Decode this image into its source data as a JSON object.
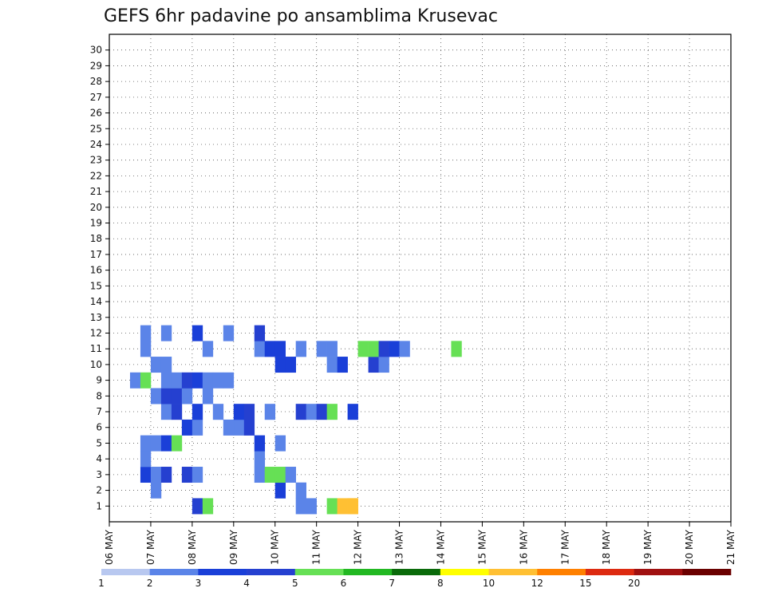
{
  "chart_data": {
    "type": "heatmap",
    "title": "GEFS 6hr padavine po ansamblima Krusevac",
    "y_members": [
      1,
      2,
      3,
      4,
      5,
      6,
      7,
      8,
      9,
      10,
      11,
      12,
      13,
      14,
      15,
      16,
      17,
      18,
      19,
      20,
      21,
      22,
      23,
      24,
      25,
      26,
      27,
      28,
      29,
      30
    ],
    "x_ticks": [
      "06 MAY",
      "07 MAY",
      "08 MAY",
      "09 MAY",
      "10 MAY",
      "11 MAY",
      "12 MAY",
      "13 MAY",
      "14 MAY",
      "15 MAY",
      "16 MAY",
      "17 MAY",
      "18 MAY",
      "19 MAY",
      "20 MAY",
      "21 MAY"
    ],
    "x_unit": "6h steps",
    "x_range": [
      0,
      60
    ],
    "grid": true,
    "colorbar": {
      "labels": [
        "1",
        "2",
        "3",
        "4",
        "5",
        "6",
        "7",
        "8",
        "10",
        "12",
        "15",
        "20"
      ],
      "colors": [
        "#b8c8f0",
        "#5b84e8",
        "#1a3fd8",
        "#2540d0",
        "#66e055",
        "#22b822",
        "#0a6a0a",
        "#ffff00",
        "#ffc033",
        "#ff8000",
        "#dd2a10",
        "#a01010",
        "#6a0000"
      ]
    },
    "levels": [
      1,
      2,
      3,
      4,
      5,
      6,
      7,
      8,
      10,
      12,
      15,
      20
    ],
    "cells": [
      [
        8,
        1,
        3
      ],
      [
        9,
        1,
        4
      ],
      [
        18,
        1,
        1
      ],
      [
        19,
        1,
        1
      ],
      [
        21,
        1,
        4
      ],
      [
        22,
        1,
        8
      ],
      [
        23,
        1,
        8
      ],
      [
        4,
        2,
        1
      ],
      [
        23,
        1,
        8
      ],
      [
        18,
        2,
        1
      ],
      [
        16,
        2,
        2
      ],
      [
        3,
        3,
        2
      ],
      [
        4,
        3,
        1
      ],
      [
        5,
        3,
        3
      ],
      [
        7,
        3,
        3
      ],
      [
        8,
        3,
        1
      ],
      [
        14,
        3,
        1
      ],
      [
        15,
        3,
        4
      ],
      [
        16,
        3,
        4
      ],
      [
        17,
        3,
        1
      ],
      [
        3,
        4,
        1
      ],
      [
        14,
        4,
        1
      ],
      [
        3,
        5,
        1
      ],
      [
        4,
        5,
        1
      ],
      [
        5,
        5,
        2
      ],
      [
        6,
        5,
        4
      ],
      [
        14,
        5,
        2
      ],
      [
        16,
        5,
        1
      ],
      [
        12,
        6,
        1
      ],
      [
        13,
        6,
        3
      ],
      [
        11,
        6,
        1
      ],
      [
        7,
        6,
        2
      ],
      [
        8,
        6,
        1
      ],
      [
        5,
        7,
        1
      ],
      [
        6,
        7,
        3
      ],
      [
        8,
        7,
        2
      ],
      [
        10,
        7,
        1
      ],
      [
        12,
        7,
        2
      ],
      [
        13,
        7,
        3
      ],
      [
        15,
        7,
        1
      ],
      [
        18,
        7,
        3
      ],
      [
        19,
        7,
        1
      ],
      [
        20,
        7,
        3
      ],
      [
        21,
        7,
        4
      ],
      [
        23,
        7,
        2
      ],
      [
        4,
        8,
        1
      ],
      [
        5,
        8,
        3
      ],
      [
        6,
        8,
        3
      ],
      [
        7,
        8,
        1
      ],
      [
        9,
        8,
        1
      ],
      [
        2,
        9,
        1
      ],
      [
        3,
        9,
        4
      ],
      [
        5,
        9,
        1
      ],
      [
        6,
        9,
        1
      ],
      [
        7,
        9,
        3
      ],
      [
        8,
        9,
        2
      ],
      [
        9,
        9,
        1
      ],
      [
        10,
        9,
        1
      ],
      [
        11,
        9,
        1
      ],
      [
        4,
        10,
        1
      ],
      [
        5,
        10,
        1
      ],
      [
        16,
        10,
        2
      ],
      [
        17,
        10,
        2
      ],
      [
        21,
        10,
        1
      ],
      [
        22,
        10,
        2
      ],
      [
        25,
        10,
        3
      ],
      [
        26,
        10,
        1
      ],
      [
        3,
        11,
        1
      ],
      [
        9,
        11,
        1
      ],
      [
        14,
        11,
        1
      ],
      [
        15,
        11,
        2
      ],
      [
        16,
        11,
        2
      ],
      [
        18,
        11,
        1
      ],
      [
        20,
        11,
        1
      ],
      [
        21,
        11,
        1
      ],
      [
        24,
        11,
        4
      ],
      [
        25,
        11,
        4
      ],
      [
        26,
        11,
        3
      ],
      [
        27,
        11,
        2
      ],
      [
        28,
        11,
        1
      ],
      [
        33,
        11,
        4
      ],
      [
        3,
        12,
        1
      ],
      [
        5,
        12,
        1
      ],
      [
        8,
        12,
        2
      ],
      [
        11,
        12,
        1
      ],
      [
        14,
        12,
        3
      ]
    ],
    "notes": ""
  }
}
